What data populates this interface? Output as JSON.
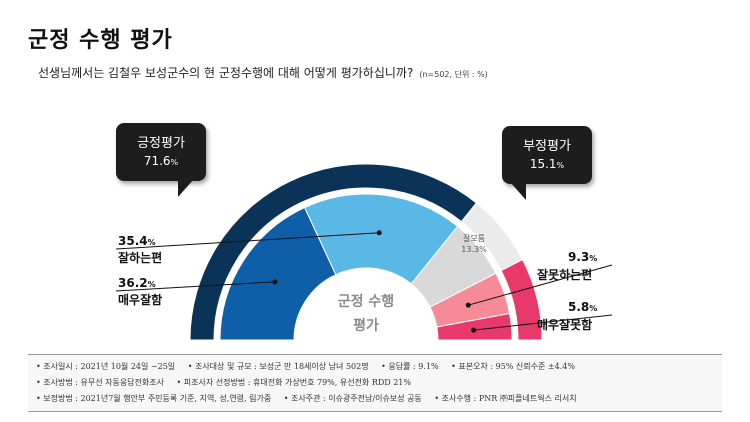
{
  "title": "군정 수행 평가",
  "question": "선생님께서는 김철우 보성군수의 현 군정수행에 대해 어떻게 평가하십니까?",
  "question_note": "(n=502, 단위 : %)",
  "callouts": {
    "positive": {
      "label": "긍정평가",
      "value": "71.6",
      "unit": "%"
    },
    "negative": {
      "label": "부정평가",
      "value": "15.1",
      "unit": "%"
    }
  },
  "center_label": [
    "군정 수행",
    "평가"
  ],
  "segment_labels": {
    "good": {
      "value": "35.4",
      "unit": "%",
      "name": "잘하는편"
    },
    "very_good": {
      "value": "36.2",
      "unit": "%",
      "name": "매우잘함"
    },
    "undecided": {
      "value": "잘모름",
      "sub": "13.3%"
    },
    "bad": {
      "value": "9.3",
      "unit": "%",
      "name": "잘못하는편"
    },
    "very_bad": {
      "value": "5.8",
      "unit": "%",
      "name": "매우잘못함"
    }
  },
  "colors": {
    "very_good": "#0f5fa8",
    "good": "#5ab8e6",
    "undecided": "#d9d9d9",
    "bad": "#f48b97",
    "very_bad": "#e9386a",
    "outer_positive": "#0b3358",
    "outer_undecided": "#ebebeb"
  },
  "chart_data": {
    "type": "pie",
    "style": "half-donut",
    "title": "군정 수행 평가",
    "inner": {
      "categories": [
        "매우잘함",
        "잘하는편",
        "잘모름",
        "잘못하는편",
        "매우잘못함"
      ],
      "values": [
        36.2,
        35.4,
        13.3,
        9.3,
        5.8
      ]
    },
    "outer": {
      "categories": [
        "긍정평가",
        "잘모름",
        "부정평가"
      ],
      "values": [
        71.6,
        13.3,
        15.1
      ]
    }
  },
  "footer": {
    "row1": [
      "• 조사일시 : 2021년 10월 24일 ~25일",
      "• 조사대상 및 규모 : 보성군 만 18세이상 남녀 502명",
      "• 응답률 : 9.1%",
      "• 표본오차 : 95% 신뢰수준 ±4.4%"
    ],
    "row2": [
      "• 조사방법 : 유무선 자동응답전화조사",
      "• 피조사자 선정방법 : 휴대전화 가상번호 79%, 유선전화 RDD 21%"
    ],
    "row3": [
      "• 보정방법 : 2021년7월 행안부 주민등록 기준, 지역, 성,연령, 림가중",
      "• 조사주관 : 이슈광주전남/이슈보성 공동",
      "• 조사수행 : PNR ㈜피플네트웍스 리서치"
    ]
  }
}
